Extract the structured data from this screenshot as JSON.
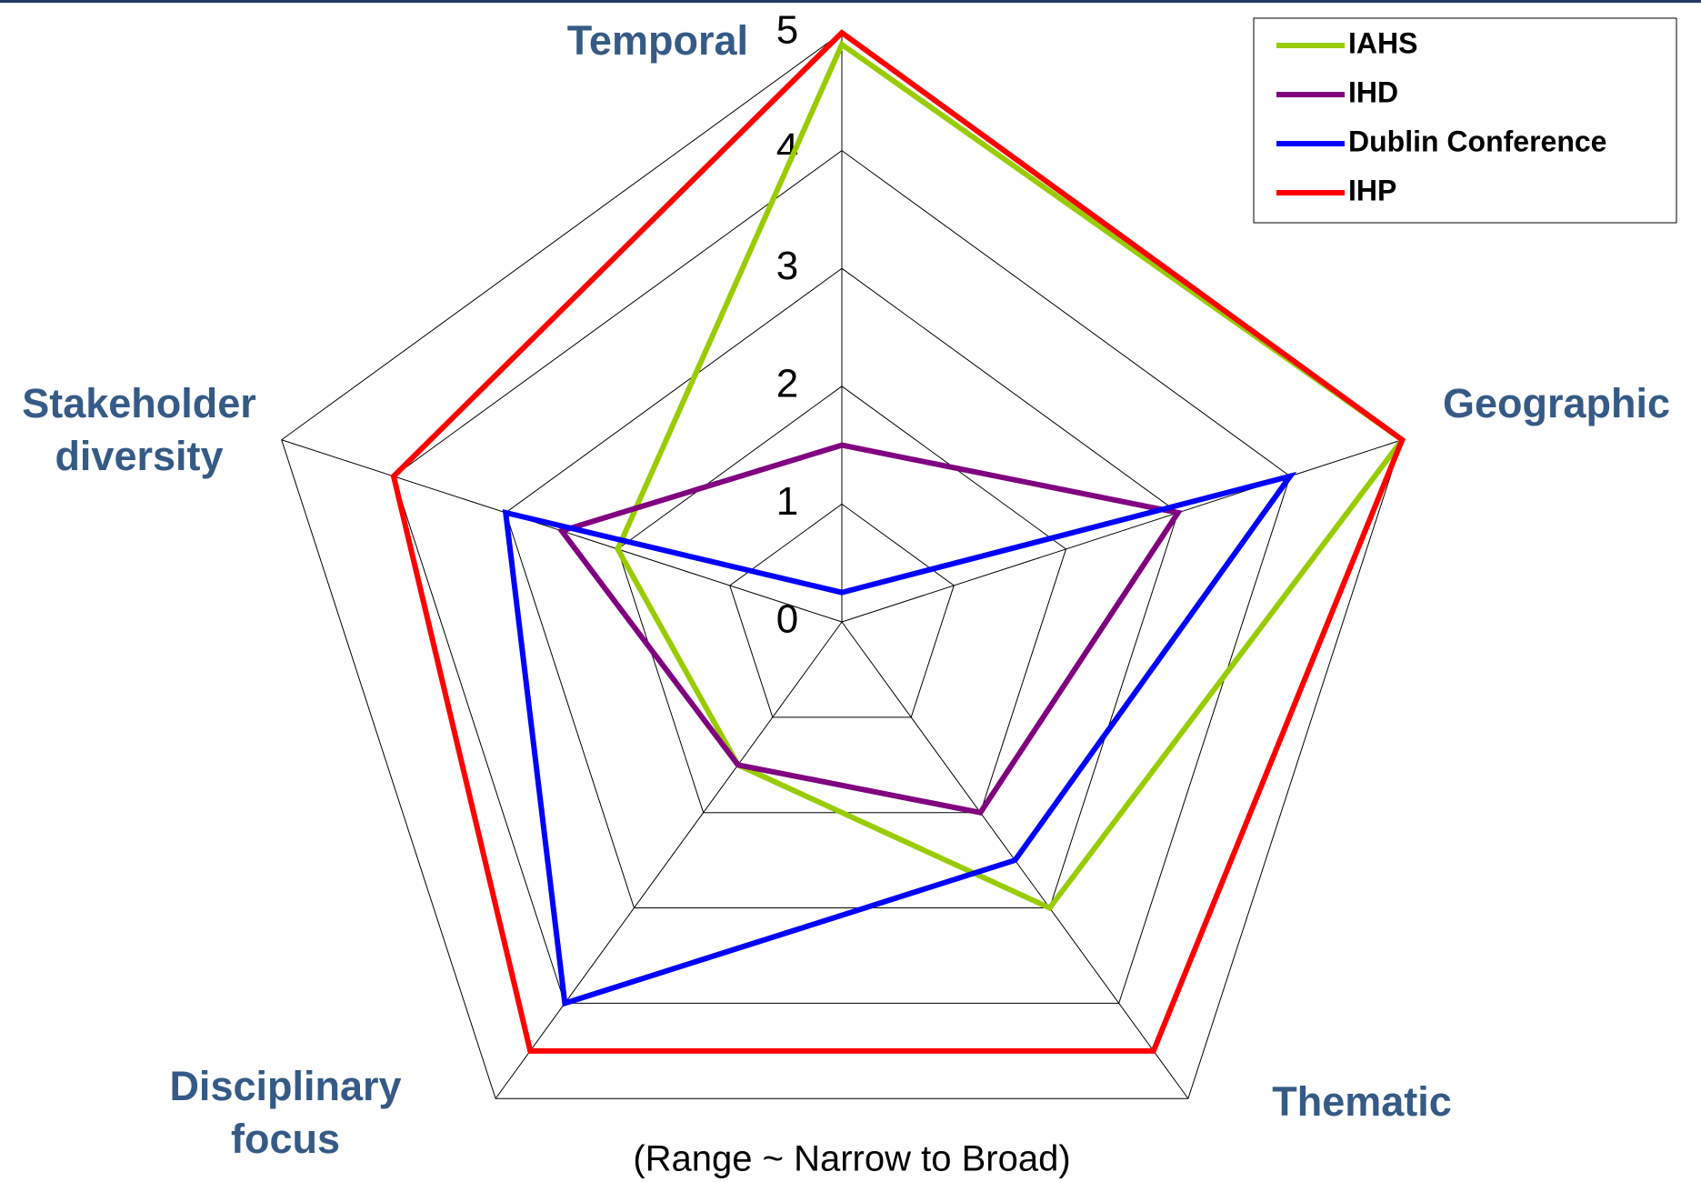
{
  "chart_data": {
    "type": "radar",
    "subtitle": "(Range ~ Narrow to Broad)",
    "categories": [
      "Temporal",
      "Geographic",
      "Thematic",
      "Disciplinary focus",
      "Stakeholder diversity"
    ],
    "ylim": [
      0,
      5
    ],
    "yticks": [
      0,
      1,
      2,
      3,
      4,
      5
    ],
    "grid": true,
    "legend": "upper right",
    "series": [
      {
        "name": "IAHS",
        "color": "#99cc00",
        "values": [
          4.9,
          5,
          3,
          1.5,
          2
        ]
      },
      {
        "name": "IHD",
        "color": "#800080",
        "values": [
          1.5,
          3,
          2,
          1.5,
          2.5
        ]
      },
      {
        "name": "Dublin Conference",
        "color": "#0000ff",
        "values": [
          0.25,
          4,
          2.5,
          4,
          3
        ]
      },
      {
        "name": "IHP",
        "color": "#ff0000",
        "values": [
          5,
          5,
          4.5,
          4.5,
          4
        ]
      }
    ]
  }
}
